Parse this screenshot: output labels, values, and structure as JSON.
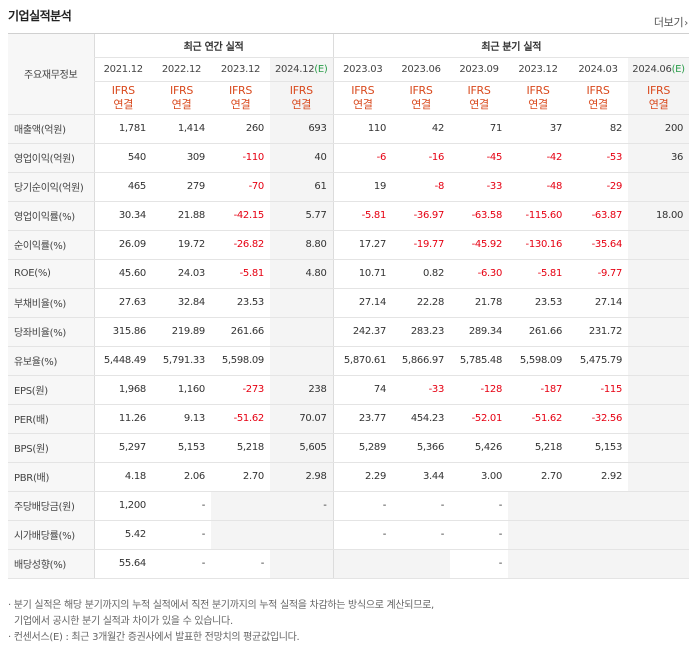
{
  "section_title": "기업실적분석",
  "more_label": "더보기",
  "header": {
    "row_label": "주요재무정보",
    "annual_group": "최근 연간 실적",
    "quarter_group": "최근 분기 실적",
    "annual_periods": [
      "2021.12",
      "2022.12",
      "2023.12",
      "2024.12"
    ],
    "annual_estimate_suffix": "(E)",
    "quarter_periods": [
      "2023.03",
      "2023.06",
      "2023.09",
      "2023.12",
      "2024.03",
      "2024.06"
    ],
    "quarter_estimate_suffix": "(E)",
    "ifrs_line1": "IFRS",
    "ifrs_line2": "연결"
  },
  "rows": [
    {
      "label": "매출액(억원)",
      "values": [
        "1,781",
        "1,414",
        "260",
        "693",
        "110",
        "42",
        "71",
        "37",
        "82",
        "200"
      ]
    },
    {
      "label": "영업이익(억원)",
      "values": [
        "540",
        "309",
        "-110",
        "40",
        "-6",
        "-16",
        "-45",
        "-42",
        "-53",
        "36"
      ]
    },
    {
      "label": "당기순이익(억원)",
      "values": [
        "465",
        "279",
        "-70",
        "61",
        "19",
        "-8",
        "-33",
        "-48",
        "-29",
        ""
      ]
    },
    {
      "label": "영업이익률(%)",
      "values": [
        "30.34",
        "21.88",
        "-42.15",
        "5.77",
        "-5.81",
        "-36.97",
        "-63.58",
        "-115.60",
        "-63.87",
        "18.00"
      ]
    },
    {
      "label": "순이익률(%)",
      "values": [
        "26.09",
        "19.72",
        "-26.82",
        "8.80",
        "17.27",
        "-19.77",
        "-45.92",
        "-130.16",
        "-35.64",
        ""
      ]
    },
    {
      "label": "ROE(%)",
      "values": [
        "45.60",
        "24.03",
        "-5.81",
        "4.80",
        "10.71",
        "0.82",
        "-6.30",
        "-5.81",
        "-9.77",
        ""
      ]
    },
    {
      "label": "부채비율(%)",
      "values": [
        "27.63",
        "32.84",
        "23.53",
        "",
        "27.14",
        "22.28",
        "21.78",
        "23.53",
        "27.14",
        ""
      ]
    },
    {
      "label": "당좌비율(%)",
      "values": [
        "315.86",
        "219.89",
        "261.66",
        "",
        "242.37",
        "283.23",
        "289.34",
        "261.66",
        "231.72",
        ""
      ]
    },
    {
      "label": "유보율(%)",
      "values": [
        "5,448.49",
        "5,791.33",
        "5,598.09",
        "",
        "5,870.61",
        "5,866.97",
        "5,785.48",
        "5,598.09",
        "5,475.79",
        ""
      ]
    },
    {
      "label": "EPS(원)",
      "values": [
        "1,968",
        "1,160",
        "-273",
        "238",
        "74",
        "-33",
        "-128",
        "-187",
        "-115",
        ""
      ]
    },
    {
      "label": "PER(배)",
      "values": [
        "11.26",
        "9.13",
        "-51.62",
        "70.07",
        "23.77",
        "454.23",
        "-52.01",
        "-51.62",
        "-32.56",
        ""
      ]
    },
    {
      "label": "BPS(원)",
      "values": [
        "5,297",
        "5,153",
        "5,218",
        "5,605",
        "5,289",
        "5,366",
        "5,426",
        "5,218",
        "5,153",
        ""
      ]
    },
    {
      "label": "PBR(배)",
      "values": [
        "4.18",
        "2.06",
        "2.70",
        "2.98",
        "2.29",
        "3.44",
        "3.00",
        "2.70",
        "2.92",
        ""
      ]
    },
    {
      "label": "주당배당금(원)",
      "values": [
        "1,200",
        "-",
        "",
        "-",
        "-",
        "-",
        "-",
        "",
        "",
        ""
      ]
    },
    {
      "label": "시가배당률(%)",
      "values": [
        "5.42",
        "-",
        "",
        "",
        "-",
        "-",
        "-",
        "",
        "",
        ""
      ]
    },
    {
      "label": "배당성향(%)",
      "values": [
        "55.64",
        "-",
        "-",
        "",
        "",
        "",
        "-",
        "",
        "",
        ""
      ]
    }
  ],
  "notes": {
    "line1": "· 분기 실적은 해당 분기까지의 누적 실적에서 직전 분기까지의 누적 실적을 차감하는 방식으로 계산되므로,",
    "line2": "기업에서 공시한 분기 실적과 차이가 있을 수 있습니다.",
    "line3": "· 컨센서스(E) : 최근 3개월간 증권사에서 발표한 전망치의 평균값입니다."
  }
}
